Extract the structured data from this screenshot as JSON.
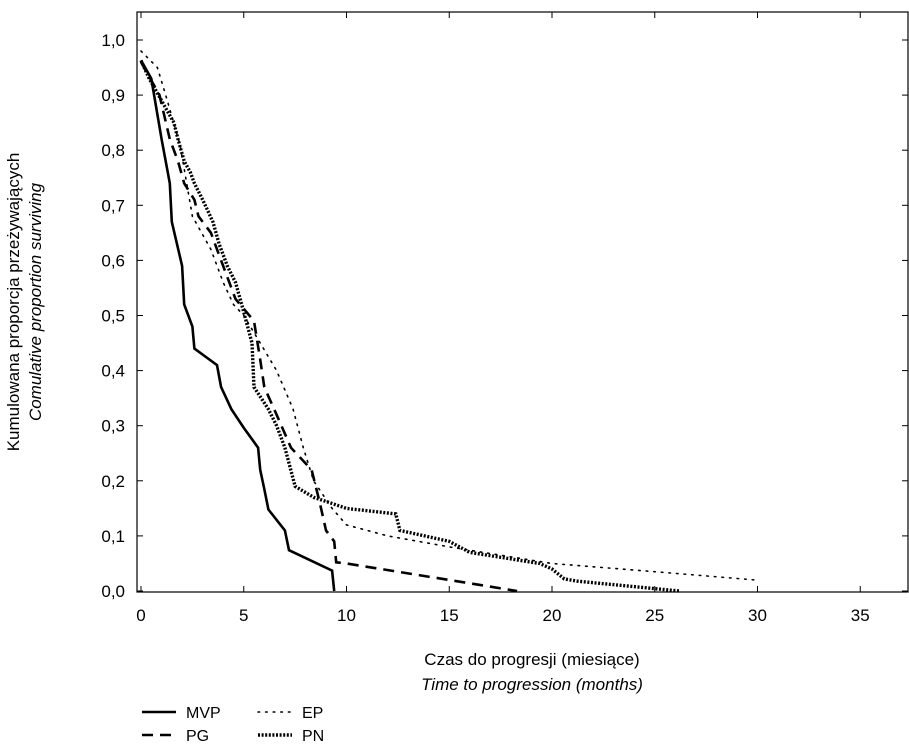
{
  "chart_data": {
    "type": "line",
    "step": true,
    "xlabel": "Czas do progresji (miesiące)",
    "xlabel_en": "Time to progression (months)",
    "ylabel": "Kumulowana proporcja przeżywających",
    "ylabel_en": "Comulative proportion surviving",
    "xlim": [
      0,
      36
    ],
    "ylim": [
      0,
      1.05
    ],
    "xticks": [
      0,
      5,
      10,
      15,
      20,
      25,
      30,
      35
    ],
    "xtick_labels": [
      "0",
      "5",
      "10",
      "15",
      "20",
      "25",
      "30",
      "35"
    ],
    "yticks": [
      0,
      0.1,
      0.2,
      0.3,
      0.4,
      0.5,
      0.6,
      0.7,
      0.8,
      0.9,
      1.0
    ],
    "ytick_labels": [
      "0,0",
      "0,1",
      "0,2",
      "0,3",
      "0,4",
      "0,5",
      "0,6",
      "0,7",
      "0,8",
      "0,9",
      "1,0"
    ],
    "grid": false,
    "legend_position": "bottom-left",
    "series": [
      {
        "name": "MVP",
        "style": "solid",
        "color": "#000000",
        "x": [
          0,
          0.5,
          1.0,
          1.4,
          1.5,
          2.0,
          2.1,
          2.5,
          2.6,
          3.7,
          3.9,
          4.4,
          5.0,
          5.7,
          5.8,
          6.0,
          6.2,
          7.0,
          7.2,
          9.3,
          9.4
        ],
        "y": [
          0.963,
          0.93,
          0.82,
          0.74,
          0.67,
          0.59,
          0.52,
          0.48,
          0.44,
          0.41,
          0.37,
          0.33,
          0.296,
          0.26,
          0.22,
          0.185,
          0.148,
          0.11,
          0.074,
          0.037,
          0.0
        ]
      },
      {
        "name": "PG",
        "style": "dashed",
        "color": "#000000",
        "x": [
          0,
          0.9,
          1.4,
          1.8,
          2.1,
          2.6,
          2.8,
          3.4,
          3.9,
          4.6,
          5.5,
          5.8,
          6.0,
          6.6,
          7.3,
          8.3,
          8.7,
          9.0,
          9.4,
          9.5,
          10.0,
          15.0,
          18.3
        ],
        "y": [
          0.96,
          0.9,
          0.82,
          0.78,
          0.74,
          0.71,
          0.68,
          0.65,
          0.6,
          0.53,
          0.49,
          0.42,
          0.37,
          0.32,
          0.26,
          0.22,
          0.16,
          0.11,
          0.09,
          0.052,
          0.05,
          0.02,
          0.0
        ]
      },
      {
        "name": "EP",
        "style": "dotted",
        "color": "#000000",
        "x": [
          0,
          0.8,
          1.2,
          1.9,
          2.5,
          3.4,
          4.0,
          4.5,
          5.0,
          5.8,
          6.6,
          7.4,
          7.9,
          8.4,
          9.3,
          10.0,
          12.0,
          15.0,
          20.0,
          25.0,
          29.9
        ],
        "y": [
          0.98,
          0.95,
          0.9,
          0.81,
          0.68,
          0.62,
          0.56,
          0.52,
          0.5,
          0.45,
          0.4,
          0.33,
          0.26,
          0.2,
          0.15,
          0.12,
          0.1,
          0.08,
          0.05,
          0.035,
          0.02
        ]
      },
      {
        "name": "PN",
        "style": "heavy-dotted",
        "color": "#000000",
        "x": [
          0,
          0.4,
          1.6,
          1.8,
          2.1,
          2.4,
          2.6,
          3.0,
          3.5,
          3.8,
          4.2,
          4.6,
          4.9,
          5.4,
          5.5,
          6.2,
          6.6,
          7.0,
          7.5,
          8.4,
          9.2,
          10.0,
          12.4,
          12.6,
          13.8,
          15.0,
          16.0,
          19.4,
          20.0,
          20.6,
          21.2,
          26.2
        ],
        "y": [
          0.963,
          0.93,
          0.85,
          0.82,
          0.78,
          0.76,
          0.74,
          0.71,
          0.67,
          0.63,
          0.59,
          0.56,
          0.52,
          0.45,
          0.37,
          0.33,
          0.3,
          0.26,
          0.19,
          0.17,
          0.16,
          0.15,
          0.14,
          0.11,
          0.1,
          0.09,
          0.07,
          0.05,
          0.04,
          0.022,
          0.018,
          0.0
        ]
      }
    ]
  }
}
